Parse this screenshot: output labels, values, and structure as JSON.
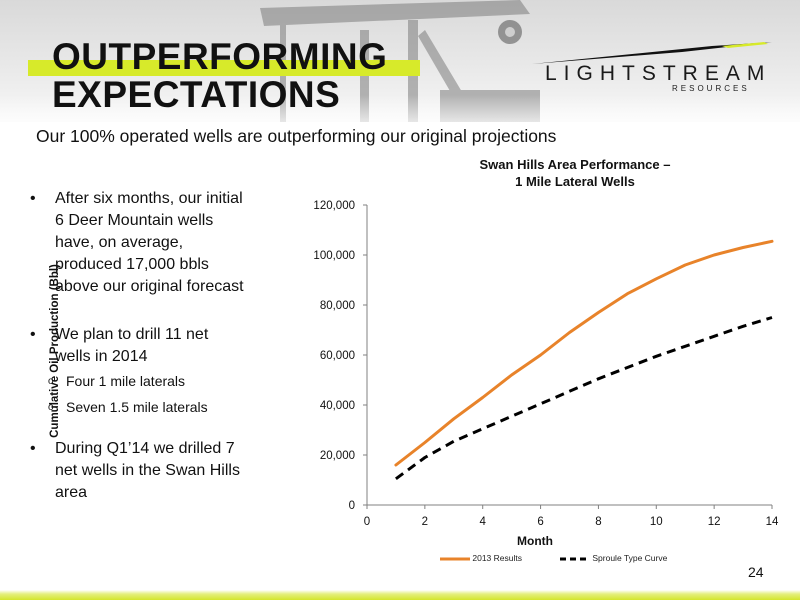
{
  "slide": {
    "title_line1": "OUTPERFORMING",
    "title_line2": "EXPECTATIONS",
    "subtitle": "Our 100% operated wells are outperforming our original projections",
    "page_number": "24",
    "accent_color": "#d7ea2a"
  },
  "logo": {
    "name": "LIGHTSTREAM",
    "sub": "RESOURCES"
  },
  "bullets": [
    {
      "text": "After six months, our initial 6 Deer Mountain wells have, on average, produced 17,000 bbls above our original forecast"
    },
    {
      "text": "We plan to drill 11 net wells in 2014",
      "subs": [
        "Four 1 mile laterals",
        "Seven 1.5 mile laterals"
      ]
    },
    {
      "text": "During Q1’14 we drilled 7 net wells in the Swan Hills area"
    }
  ],
  "chart_data": {
    "type": "line",
    "title": "Swan Hills Area Performance – 1 Mile Lateral Wells",
    "title_line1": "Swan Hills Area Performance –",
    "title_line2": "1 Mile Lateral Wells",
    "xlabel": "Month",
    "ylabel": "Cumulative Oil Production (Bbl)",
    "xlim": [
      0,
      14
    ],
    "ylim": [
      0,
      120000
    ],
    "x_ticks": [
      "0",
      "2",
      "4",
      "6",
      "8",
      "10",
      "12",
      "14"
    ],
    "y_ticks": [
      "0",
      "20,000",
      "40,000",
      "60,000",
      "80,000",
      "100,000",
      "120,000"
    ],
    "grid": false,
    "legend_position": "bottom",
    "series": [
      {
        "name": "2013 Results",
        "color": "#e8832a",
        "style": "solid",
        "x": [
          1,
          2,
          3,
          4,
          5,
          6,
          7,
          8,
          9,
          10,
          11,
          12,
          13,
          14
        ],
        "y": [
          16000,
          25000,
          34500,
          43000,
          52000,
          60000,
          69000,
          77000,
          84500,
          90500,
          96000,
          100000,
          103000,
          105500
        ]
      },
      {
        "name": "Sproule Type Curve",
        "color": "#000000",
        "style": "dashed",
        "x": [
          1,
          2,
          3,
          4,
          5,
          6,
          7,
          8,
          9,
          10,
          11,
          12,
          13,
          14
        ],
        "y": [
          10500,
          19000,
          25500,
          30500,
          35500,
          40500,
          45500,
          50500,
          55000,
          59500,
          63500,
          67500,
          71500,
          75000
        ]
      }
    ]
  }
}
